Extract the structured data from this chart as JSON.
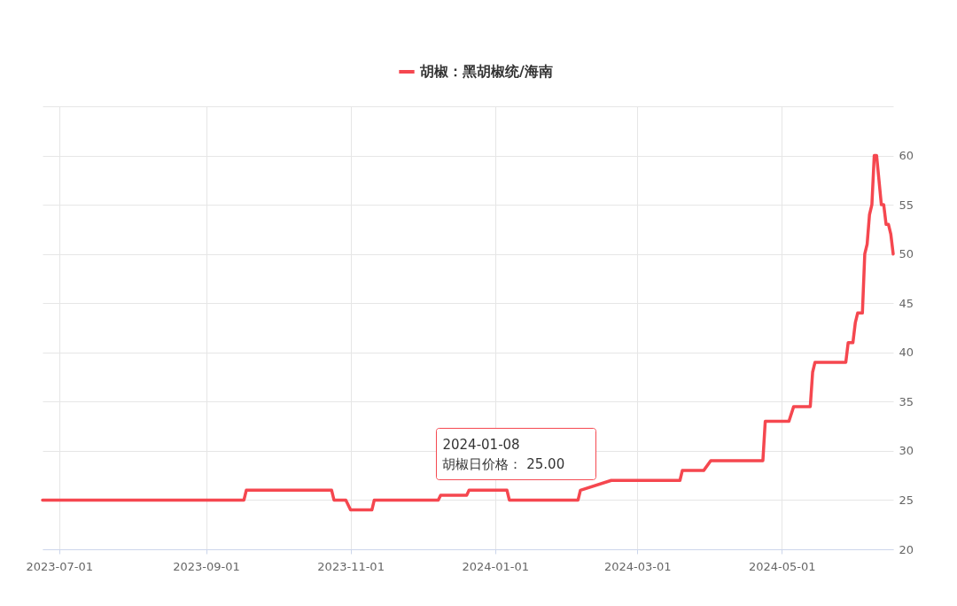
{
  "chart_data": {
    "type": "line",
    "legend": "top",
    "grid": true,
    "marker": "none",
    "line_style": "solid",
    "xlim": [
      "2023-06-24",
      "2024-06-17"
    ],
    "xticks": [
      "2023-07-01",
      "2023-09-01",
      "2023-11-01",
      "2024-01-01",
      "2024-03-01",
      "2024-05-01"
    ],
    "ylim": [
      20,
      65
    ],
    "yticks": [
      20,
      25,
      30,
      35,
      40,
      45,
      50,
      55,
      60,
      {
        "value": 65,
        "label": null
      }
    ],
    "annotations": [
      {
        "text": "2024-01-08\n胡椒日价格：   25.00",
        "x": "2024-01-08",
        "y": 25
      }
    ],
    "series": [
      {
        "name": "胡椒：黑胡椒统/海南",
        "color": "#f5474f",
        "x": [
          "2023-06-24",
          "2023-09-17",
          "2023-09-18",
          "2023-10-24",
          "2023-10-25",
          "2023-10-30",
          "2023-11-01",
          "2023-11-10",
          "2023-11-11",
          "2023-12-08",
          "2023-12-09",
          "2023-12-20",
          "2023-12-21",
          "2024-01-06",
          "2024-01-07",
          "2024-02-05",
          "2024-02-06",
          "2024-02-19",
          "2024-03-19",
          "2024-03-20",
          "2024-03-29",
          "2024-04-01",
          "2024-04-23",
          "2024-04-24",
          "2024-05-04",
          "2024-05-06",
          "2024-05-13",
          "2024-05-14",
          "2024-05-15",
          "2024-05-28",
          "2024-05-29",
          "2024-05-31",
          "2024-06-01",
          "2024-06-02",
          "2024-06-04",
          "2024-06-05",
          "2024-06-06",
          "2024-06-07",
          "2024-06-08",
          "2024-06-09",
          "2024-06-10",
          "2024-06-11",
          "2024-06-12",
          "2024-06-13",
          "2024-06-14",
          "2024-06-15",
          "2024-06-16",
          "2024-06-17"
        ],
        "values": [
          25,
          25,
          26,
          26,
          25,
          25,
          24,
          24,
          25,
          25,
          25.5,
          25.5,
          26,
          26,
          25,
          25,
          26,
          27,
          27,
          28,
          28,
          29,
          29,
          33,
          33,
          34.5,
          34.5,
          38,
          39,
          39,
          41,
          41,
          43,
          44,
          44,
          50,
          51,
          54,
          55,
          60,
          60,
          57.5,
          55,
          55,
          53,
          53,
          52,
          50
        ]
      }
    ]
  }
}
